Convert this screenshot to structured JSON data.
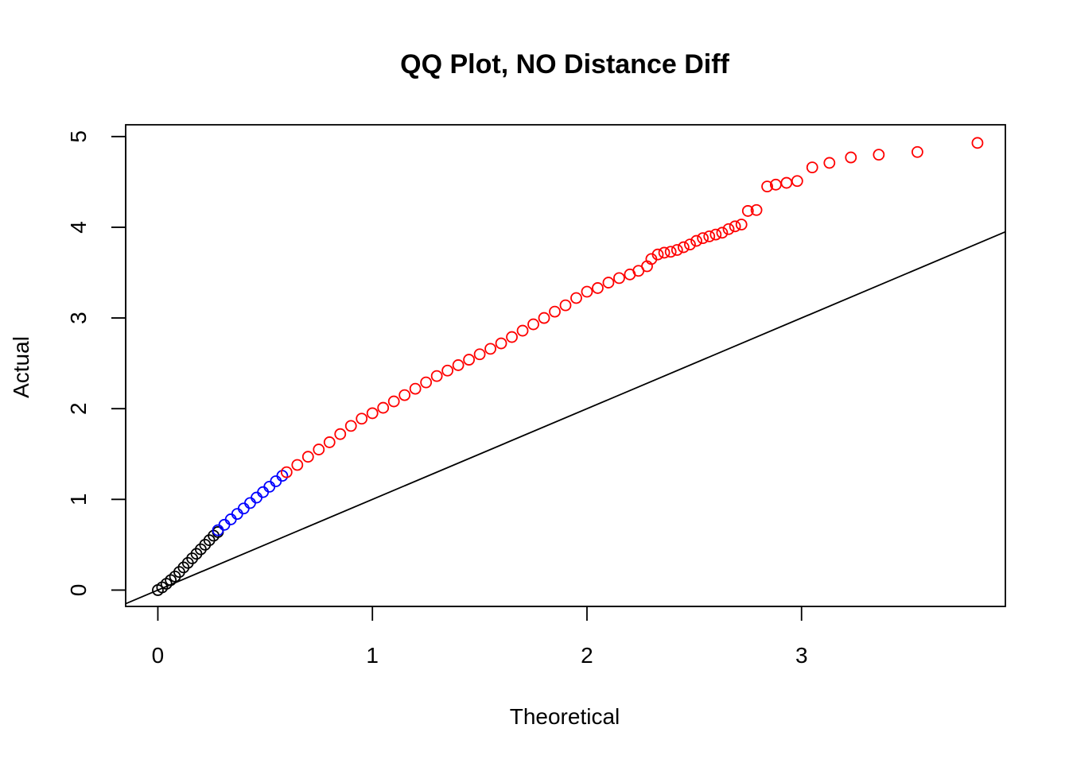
{
  "chart_data": {
    "type": "scatter",
    "title": "QQ Plot, NO Distance Diff",
    "xlabel": "Theoretical",
    "ylabel": "Actual",
    "xlim": [
      -0.15,
      3.95
    ],
    "ylim": [
      -0.18,
      5.13
    ],
    "x_ticks": [
      "0",
      "1",
      "2",
      "3"
    ],
    "y_ticks": [
      "0",
      "1",
      "2",
      "3",
      "4",
      "5"
    ],
    "grid": false,
    "legend": "none",
    "reference_line": {
      "slope": 1,
      "intercept": 0
    },
    "colors": {
      "low": "#000000",
      "mid": "#0000ff",
      "high": "#ff0000",
      "line": "#000000"
    },
    "series": [
      {
        "color": "#000000",
        "points": [
          [
            0.0,
            0.0
          ],
          [
            0.02,
            0.03
          ],
          [
            0.04,
            0.07
          ],
          [
            0.06,
            0.11
          ],
          [
            0.08,
            0.15
          ],
          [
            0.1,
            0.2
          ],
          [
            0.12,
            0.25
          ],
          [
            0.14,
            0.3
          ],
          [
            0.16,
            0.35
          ],
          [
            0.18,
            0.4
          ],
          [
            0.2,
            0.45
          ],
          [
            0.22,
            0.5
          ],
          [
            0.24,
            0.55
          ],
          [
            0.26,
            0.6
          ],
          [
            0.28,
            0.64
          ]
        ]
      },
      {
        "color": "#0000ff",
        "points": [
          [
            0.28,
            0.66
          ],
          [
            0.31,
            0.72
          ],
          [
            0.34,
            0.78
          ],
          [
            0.37,
            0.84
          ],
          [
            0.4,
            0.9
          ],
          [
            0.43,
            0.96
          ],
          [
            0.46,
            1.02
          ],
          [
            0.49,
            1.08
          ],
          [
            0.52,
            1.14
          ],
          [
            0.55,
            1.2
          ],
          [
            0.58,
            1.26
          ]
        ]
      },
      {
        "color": "#ff0000",
        "points": [
          [
            0.6,
            1.3
          ],
          [
            0.65,
            1.38
          ],
          [
            0.7,
            1.47
          ],
          [
            0.75,
            1.55
          ],
          [
            0.8,
            1.63
          ],
          [
            0.85,
            1.72
          ],
          [
            0.9,
            1.81
          ],
          [
            0.95,
            1.89
          ],
          [
            1.0,
            1.95
          ],
          [
            1.05,
            2.01
          ],
          [
            1.1,
            2.08
          ],
          [
            1.15,
            2.15
          ],
          [
            1.2,
            2.22
          ],
          [
            1.25,
            2.29
          ],
          [
            1.3,
            2.36
          ],
          [
            1.35,
            2.42
          ],
          [
            1.4,
            2.48
          ],
          [
            1.45,
            2.54
          ],
          [
            1.5,
            2.6
          ],
          [
            1.55,
            2.66
          ],
          [
            1.6,
            2.72
          ],
          [
            1.65,
            2.79
          ],
          [
            1.7,
            2.86
          ],
          [
            1.75,
            2.93
          ],
          [
            1.8,
            3.0
          ],
          [
            1.85,
            3.07
          ],
          [
            1.9,
            3.14
          ],
          [
            1.95,
            3.22
          ],
          [
            2.0,
            3.29
          ],
          [
            2.05,
            3.33
          ],
          [
            2.1,
            3.39
          ],
          [
            2.15,
            3.44
          ],
          [
            2.2,
            3.48
          ],
          [
            2.24,
            3.52
          ],
          [
            2.28,
            3.57
          ],
          [
            2.3,
            3.65
          ],
          [
            2.33,
            3.7
          ],
          [
            2.36,
            3.72
          ],
          [
            2.39,
            3.73
          ],
          [
            2.42,
            3.75
          ],
          [
            2.45,
            3.78
          ],
          [
            2.48,
            3.81
          ],
          [
            2.51,
            3.85
          ],
          [
            2.54,
            3.88
          ],
          [
            2.57,
            3.9
          ],
          [
            2.6,
            3.92
          ],
          [
            2.63,
            3.94
          ],
          [
            2.66,
            3.98
          ],
          [
            2.69,
            4.01
          ],
          [
            2.72,
            4.03
          ],
          [
            2.75,
            4.18
          ],
          [
            2.79,
            4.19
          ],
          [
            2.84,
            4.45
          ],
          [
            2.88,
            4.47
          ],
          [
            2.93,
            4.49
          ],
          [
            2.98,
            4.51
          ],
          [
            3.05,
            4.66
          ],
          [
            3.13,
            4.71
          ],
          [
            3.23,
            4.77
          ],
          [
            3.36,
            4.8
          ],
          [
            3.54,
            4.83
          ],
          [
            3.82,
            4.93
          ]
        ]
      }
    ]
  }
}
